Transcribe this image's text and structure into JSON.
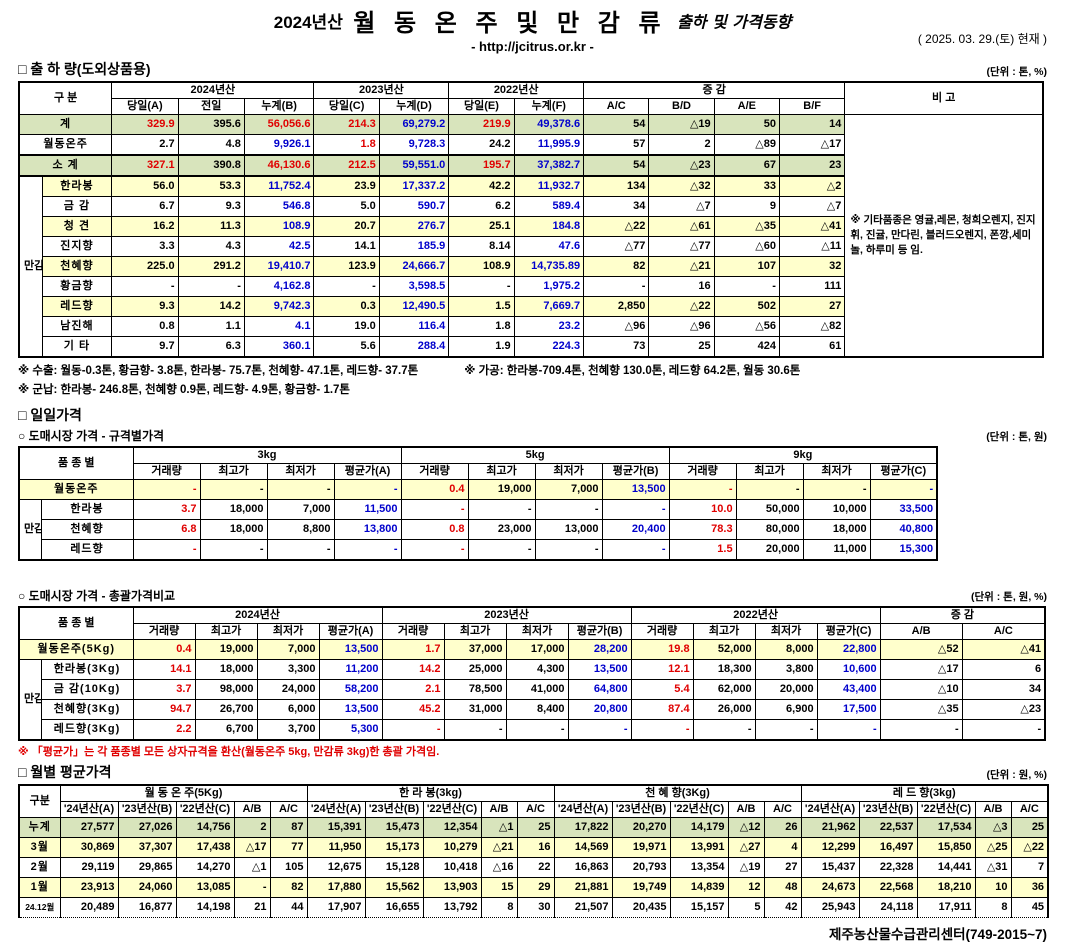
{
  "colors": {
    "red_text": "#e00000",
    "blue_text": "#0000cc",
    "green_row": "#d8e4bc",
    "yellow_row": "#ffffcc"
  },
  "header": {
    "year": "2024년산",
    "title": "월 동 온 주 및 만 감 류",
    "title_suffix": "출하 및 가격동향",
    "url": "- http://jcitrus.or.kr -",
    "date": "( 2025. 03. 29.(토) 현재 )"
  },
  "sections": {
    "shipment": {
      "title": "□ 출 하 량(도외상품용)",
      "unit": "(단위 : 톤, %)"
    },
    "daily": {
      "title": "□ 일일가격"
    },
    "daily_spec": {
      "title": "○ 도매시장 가격 - 규격별가격",
      "unit": "(단위 : 톤, 원)"
    },
    "daily_total": {
      "title": "○ 도매시장 가격 - 총괄가격비교",
      "unit": "(단위 : 톤, 원, %)"
    },
    "monthly": {
      "title": "□ 월별 평균가격",
      "unit": "(단위 : 원, %)"
    }
  },
  "t1": {
    "head": {
      "gubun": "구    분",
      "y2024": "2024년산",
      "y2023": "2023년산",
      "y2022": "2022년산",
      "diff": "증    감",
      "bigo": "비 고",
      "cols": [
        "당일(A)",
        "전일",
        "누계(B)",
        "당일(C)",
        "누계(D)",
        "당일(E)",
        "누계(F)",
        "A/C",
        "B/D",
        "A/E",
        "B/F"
      ]
    },
    "group_label": "만감류",
    "note": "※ 기타품종은 영귤,레몬, 청희오렌지, 진지휘, 진귤, 만다린, 블러드오렌지, 폰깡,세미놀, 하루미 등 임.",
    "col_colors": [
      "k",
      "k",
      "b",
      "k",
      "b",
      "k",
      "b",
      "k",
      "k",
      "k",
      "k"
    ],
    "rows": [
      {
        "label": "계",
        "bg": "g",
        "bigo": true,
        "colors": {
          "0": "r",
          "2": "r",
          "3": "r",
          "5": "r"
        },
        "cells": [
          "329.9",
          "395.6",
          "56,056.6",
          "214.3",
          "69,279.2",
          "219.9",
          "49,378.6",
          "54",
          "△19",
          "50",
          "14"
        ]
      },
      {
        "label": "월동온주",
        "bg": "w",
        "colors": {
          "3": "r"
        },
        "cells": [
          "2.7",
          "4.8",
          "9,926.1",
          "1.8",
          "9,728.3",
          "24.2",
          "11,995.9",
          "57",
          "2",
          "△89",
          "△17"
        ]
      },
      {
        "label": "소  계",
        "bg": "g",
        "hv": true,
        "colors": {
          "0": "r",
          "2": "r",
          "3": "r",
          "5": "r"
        },
        "cells": [
          "327.1",
          "390.8",
          "46,130.6",
          "212.5",
          "59,551.0",
          "195.7",
          "37,382.7",
          "54",
          "△23",
          "67",
          "23"
        ]
      },
      {
        "label": "한라봉",
        "bg": "y",
        "group": true,
        "cells": [
          "56.0",
          "53.3",
          "11,752.4",
          "23.9",
          "17,337.2",
          "42.2",
          "11,932.7",
          "134",
          "△32",
          "33",
          "△2"
        ]
      },
      {
        "label": "금  감",
        "bg": "w",
        "group": true,
        "cells": [
          "6.7",
          "9.3",
          "546.8",
          "5.0",
          "590.7",
          "6.2",
          "589.4",
          "34",
          "△7",
          "9",
          "△7"
        ]
      },
      {
        "label": "청  견",
        "bg": "y",
        "group": true,
        "cells": [
          "16.2",
          "11.3",
          "108.9",
          "20.7",
          "276.7",
          "25.1",
          "184.8",
          "△22",
          "△61",
          "△35",
          "△41"
        ]
      },
      {
        "label": "진지향",
        "bg": "w",
        "group": true,
        "cells": [
          "3.3",
          "4.3",
          "42.5",
          "14.1",
          "185.9",
          "8.14",
          "47.6",
          "△77",
          "△77",
          "△60",
          "△11"
        ]
      },
      {
        "label": "천혜향",
        "bg": "y",
        "group": true,
        "cells": [
          "225.0",
          "291.2",
          "19,410.7",
          "123.9",
          "24,666.7",
          "108.9",
          "14,735.89",
          "82",
          "△21",
          "107",
          "32"
        ]
      },
      {
        "label": "황금향",
        "bg": "w",
        "group": true,
        "cells": [
          "-",
          "-",
          "4,162.8",
          "-",
          "3,598.5",
          "-",
          "1,975.2",
          "-",
          "16",
          "-",
          "111"
        ]
      },
      {
        "label": "레드향",
        "bg": "y",
        "group": true,
        "cells": [
          "9.3",
          "14.2",
          "9,742.3",
          "0.3",
          "12,490.5",
          "1.5",
          "7,669.7",
          "2,850",
          "△22",
          "502",
          "27"
        ]
      },
      {
        "label": "남진해",
        "bg": "w",
        "group": true,
        "cells": [
          "0.8",
          "1.1",
          "4.1",
          "19.0",
          "116.4",
          "1.8",
          "23.2",
          "△96",
          "△96",
          "△56",
          "△82"
        ]
      },
      {
        "label": "기  타",
        "bg": "w",
        "group": true,
        "cells": [
          "9.7",
          "6.3",
          "360.1",
          "5.6",
          "288.4",
          "1.9",
          "224.3",
          "73",
          "25",
          "424",
          "61"
        ]
      }
    ]
  },
  "notes": {
    "export": "※ 수출: 월동-0.3톤, 황금향- 3.8톤, 한라봉- 75.7톤, 천혜향- 47.1톤, 레드향- 37.7톤",
    "process": "※ 가공:  한라봉-709.4톤, 천혜향 130.0톤, 레드향 64.2톤, 월동 30.6톤",
    "military": "※ 군납: 한라봉- 246.8톤, 천혜향 0.9톤, 레드향- 4.9톤, 황금향- 1.7톤",
    "avg_price": "※ 「평균가」는 각 품종별 모든 상자규격을 환산(월동온주 5kg, 만감류 3kg)한 총괄 가격임."
  },
  "t2": {
    "head": {
      "gubun": "품 종 별",
      "g3": "3kg",
      "g5": "5kg",
      "g9": "9kg",
      "cols": [
        "거래량",
        "최고가",
        "최저가",
        "평균가(A)",
        "거래량",
        "최고가",
        "최저가",
        "평균가(B)",
        "거래량",
        "최고가",
        "최저가",
        "평균가(C)"
      ]
    },
    "group_label": "만감류",
    "col_colors": [
      "r",
      "k",
      "k",
      "b",
      "r",
      "k",
      "k",
      "b",
      "r",
      "k",
      "k",
      "b"
    ],
    "rows": [
      {
        "label": "월동온주",
        "bg": "y",
        "cells": [
          "-",
          "-",
          "-",
          "-",
          "0.4",
          "19,000",
          "7,000",
          "13,500",
          "-",
          "-",
          "-",
          "-"
        ]
      },
      {
        "label": "한라봉",
        "bg": "w",
        "group": true,
        "cells": [
          "3.7",
          "18,000",
          "7,000",
          "11,500",
          "-",
          "-",
          "-",
          "-",
          "10.0",
          "50,000",
          "10,000",
          "33,500"
        ]
      },
      {
        "label": "천혜향",
        "bg": "w",
        "group": true,
        "cells": [
          "6.8",
          "18,000",
          "8,800",
          "13,800",
          "0.8",
          "23,000",
          "13,000",
          "20,400",
          "78.3",
          "80,000",
          "18,000",
          "40,800"
        ]
      },
      {
        "label": "레드향",
        "bg": "w",
        "group": true,
        "cells": [
          "-",
          "-",
          "-",
          "-",
          "-",
          "-",
          "-",
          "-",
          "1.5",
          "20,000",
          "11,000",
          "15,300"
        ]
      }
    ]
  },
  "t3": {
    "head": {
      "gubun": "품 종 별",
      "y2024": "2024년산",
      "y2023": "2023년산",
      "y2022": "2022년산",
      "diff": "증  감",
      "cols": [
        "거래량",
        "최고가",
        "최저가",
        "평균가(A)",
        "거래량",
        "최고가",
        "최저가",
        "평균가(B)",
        "거래량",
        "최고가",
        "최저가",
        "평균가(C)",
        "A/B",
        "A/C"
      ]
    },
    "group_label": "만감류",
    "col_colors": [
      "r",
      "k",
      "k",
      "b",
      "r",
      "k",
      "k",
      "b",
      "r",
      "k",
      "k",
      "b",
      "k",
      "k"
    ],
    "rows": [
      {
        "label": "월동온주(5Kg)",
        "bg": "y",
        "cells": [
          "0.4",
          "19,000",
          "7,000",
          "13,500",
          "1.7",
          "37,000",
          "17,000",
          "28,200",
          "19.8",
          "52,000",
          "8,000",
          "22,800",
          "△52",
          "△41"
        ]
      },
      {
        "label": "한라봉(3Kg)",
        "bg": "w",
        "group": true,
        "cells": [
          "14.1",
          "18,000",
          "3,300",
          "11,200",
          "14.2",
          "25,000",
          "4,300",
          "13,500",
          "12.1",
          "18,300",
          "3,800",
          "10,600",
          "△17",
          "6"
        ]
      },
      {
        "label": "금 감(10Kg)",
        "bg": "w",
        "group": true,
        "cells": [
          "3.7",
          "98,000",
          "24,000",
          "58,200",
          "2.1",
          "78,500",
          "41,000",
          "64,800",
          "5.4",
          "62,000",
          "20,000",
          "43,400",
          "△10",
          "34"
        ]
      },
      {
        "label": "천혜향(3Kg)",
        "bg": "w",
        "group": true,
        "cells": [
          "94.7",
          "26,700",
          "6,000",
          "13,500",
          "45.2",
          "31,000",
          "8,400",
          "20,800",
          "87.4",
          "26,000",
          "6,900",
          "17,500",
          "△35",
          "△23"
        ]
      },
      {
        "label": "레드향(3Kg)",
        "bg": "w",
        "group": true,
        "cells": [
          "2.2",
          "6,700",
          "3,700",
          "5,300",
          "-",
          "-",
          "-",
          "-",
          "-",
          "-",
          "-",
          "-",
          "-",
          "-"
        ]
      }
    ]
  },
  "t4": {
    "head": {
      "gubun": "구분",
      "g1": "월 동 온 주(5Kg)",
      "g2": "한 라 봉(3kg)",
      "g3": "천 혜 향(3Kg)",
      "g4": "레 드 향(3kg)",
      "cols": [
        "'24년산(A)",
        "'23년산(B)",
        "'22년산(C)",
        "A/B",
        "A/C",
        "'24년산(A)",
        "'23년산(B)",
        "'22년산(C)",
        "A/B",
        "A/C",
        "'24년산(A)",
        "'23년산(B)",
        "'22년산(C)",
        "A/B",
        "A/C",
        "'24년산(A)",
        "'23년산(B)",
        "'22년산(C)",
        "A/B",
        "A/C"
      ]
    },
    "col_colors": [
      "k",
      "k",
      "k",
      "k",
      "k",
      "k",
      "k",
      "k",
      "k",
      "k",
      "k",
      "k",
      "k",
      "k",
      "k",
      "k",
      "k",
      "k",
      "k",
      "k"
    ],
    "rows": [
      {
        "label": "누계",
        "bg": "g",
        "cells": [
          "27,577",
          "27,026",
          "14,756",
          "2",
          "87",
          "15,391",
          "15,473",
          "12,354",
          "△1",
          "25",
          "17,822",
          "20,270",
          "14,179",
          "△12",
          "26",
          "21,962",
          "22,537",
          "17,534",
          "△3",
          "25"
        ]
      },
      {
        "label": "3월",
        "bg": "y",
        "cells": [
          "30,869",
          "37,307",
          "17,438",
          "△17",
          "77",
          "11,950",
          "15,173",
          "10,279",
          "△21",
          "16",
          "14,569",
          "19,971",
          "13,991",
          "△27",
          "4",
          "12,299",
          "16,497",
          "15,850",
          "△25",
          "△22"
        ]
      },
      {
        "label": "2월",
        "bg": "w",
        "cells": [
          "29,119",
          "29,865",
          "14,270",
          "△1",
          "105",
          "12,675",
          "15,128",
          "10,418",
          "△16",
          "22",
          "16,863",
          "20,793",
          "13,354",
          "△19",
          "27",
          "15,437",
          "22,328",
          "14,441",
          "△31",
          "7"
        ]
      },
      {
        "label": "1월",
        "bg": "y",
        "cells": [
          "23,913",
          "24,060",
          "13,085",
          "-",
          "82",
          "17,880",
          "15,562",
          "13,903",
          "15",
          "29",
          "21,881",
          "19,749",
          "14,839",
          "12",
          "48",
          "24,673",
          "22,568",
          "18,210",
          "10",
          "36"
        ]
      },
      {
        "label": "24.12월",
        "bg": "w",
        "small": true,
        "cells": [
          "20,489",
          "16,877",
          "14,198",
          "21",
          "44",
          "17,907",
          "16,655",
          "13,792",
          "8",
          "30",
          "21,507",
          "20,435",
          "15,157",
          "5",
          "42",
          "25,943",
          "24,118",
          "17,911",
          "8",
          "45"
        ]
      }
    ]
  },
  "footer": {
    "org": "제주농산물수급관리센터(749-2015~7)"
  }
}
